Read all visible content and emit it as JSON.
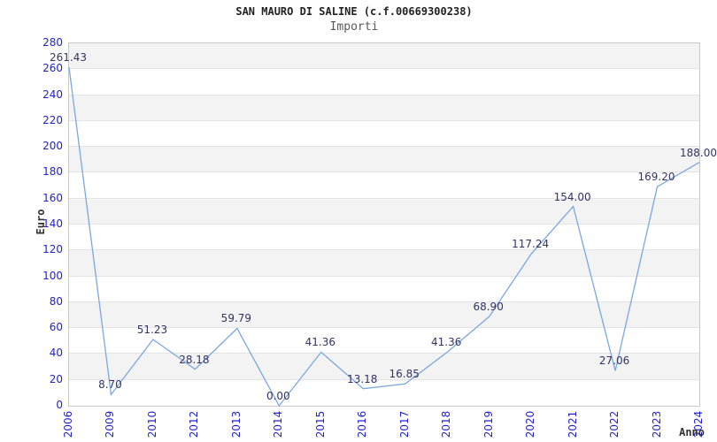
{
  "page": {
    "title": "SAN MAURO DI SALINE (c.f.00669300238)",
    "subtitle": "Importi"
  },
  "chart_data": {
    "type": "line",
    "title": "SAN MAURO DI SALINE (c.f.00669300238)",
    "subtitle": "Importi",
    "xlabel": "Anno",
    "ylabel": "Euro",
    "categories": [
      "2006",
      "2009",
      "2010",
      "2012",
      "2013",
      "2014",
      "2015",
      "2016",
      "2017",
      "2018",
      "2019",
      "2020",
      "2021",
      "2022",
      "2023",
      "2024"
    ],
    "values": [
      261.43,
      8.7,
      51.23,
      28.18,
      59.79,
      0.0,
      41.36,
      13.18,
      16.85,
      41.36,
      68.9,
      117.24,
      154.0,
      27.06,
      169.2,
      188.0
    ],
    "point_labels": [
      "261.43",
      "8.70",
      "51.23",
      "28.18",
      "59.79",
      "0.00",
      "41.36",
      "13.18",
      "16.85",
      "41.36",
      "68.90",
      "117.24",
      "154.00",
      "27.06",
      "169.20",
      "188.00"
    ],
    "ylim": [
      0,
      280
    ],
    "ytick_step": 20,
    "y_ticks": [
      "0",
      "20",
      "40",
      "60",
      "80",
      "100",
      "120",
      "140",
      "160",
      "180",
      "200",
      "220",
      "240",
      "260",
      "280"
    ],
    "grid": "horizontal-bands",
    "legend": "none",
    "colors": {
      "line": "#7aa7e0",
      "tick_label": "#2222cc",
      "point_label": "#333366",
      "band_fill": "#f3f3f3",
      "grid_line": "#e4e4e4",
      "plot_border": "#c9c9c9",
      "title": "#222222",
      "subtitle": "#585858",
      "axis_title": "#333333"
    }
  }
}
